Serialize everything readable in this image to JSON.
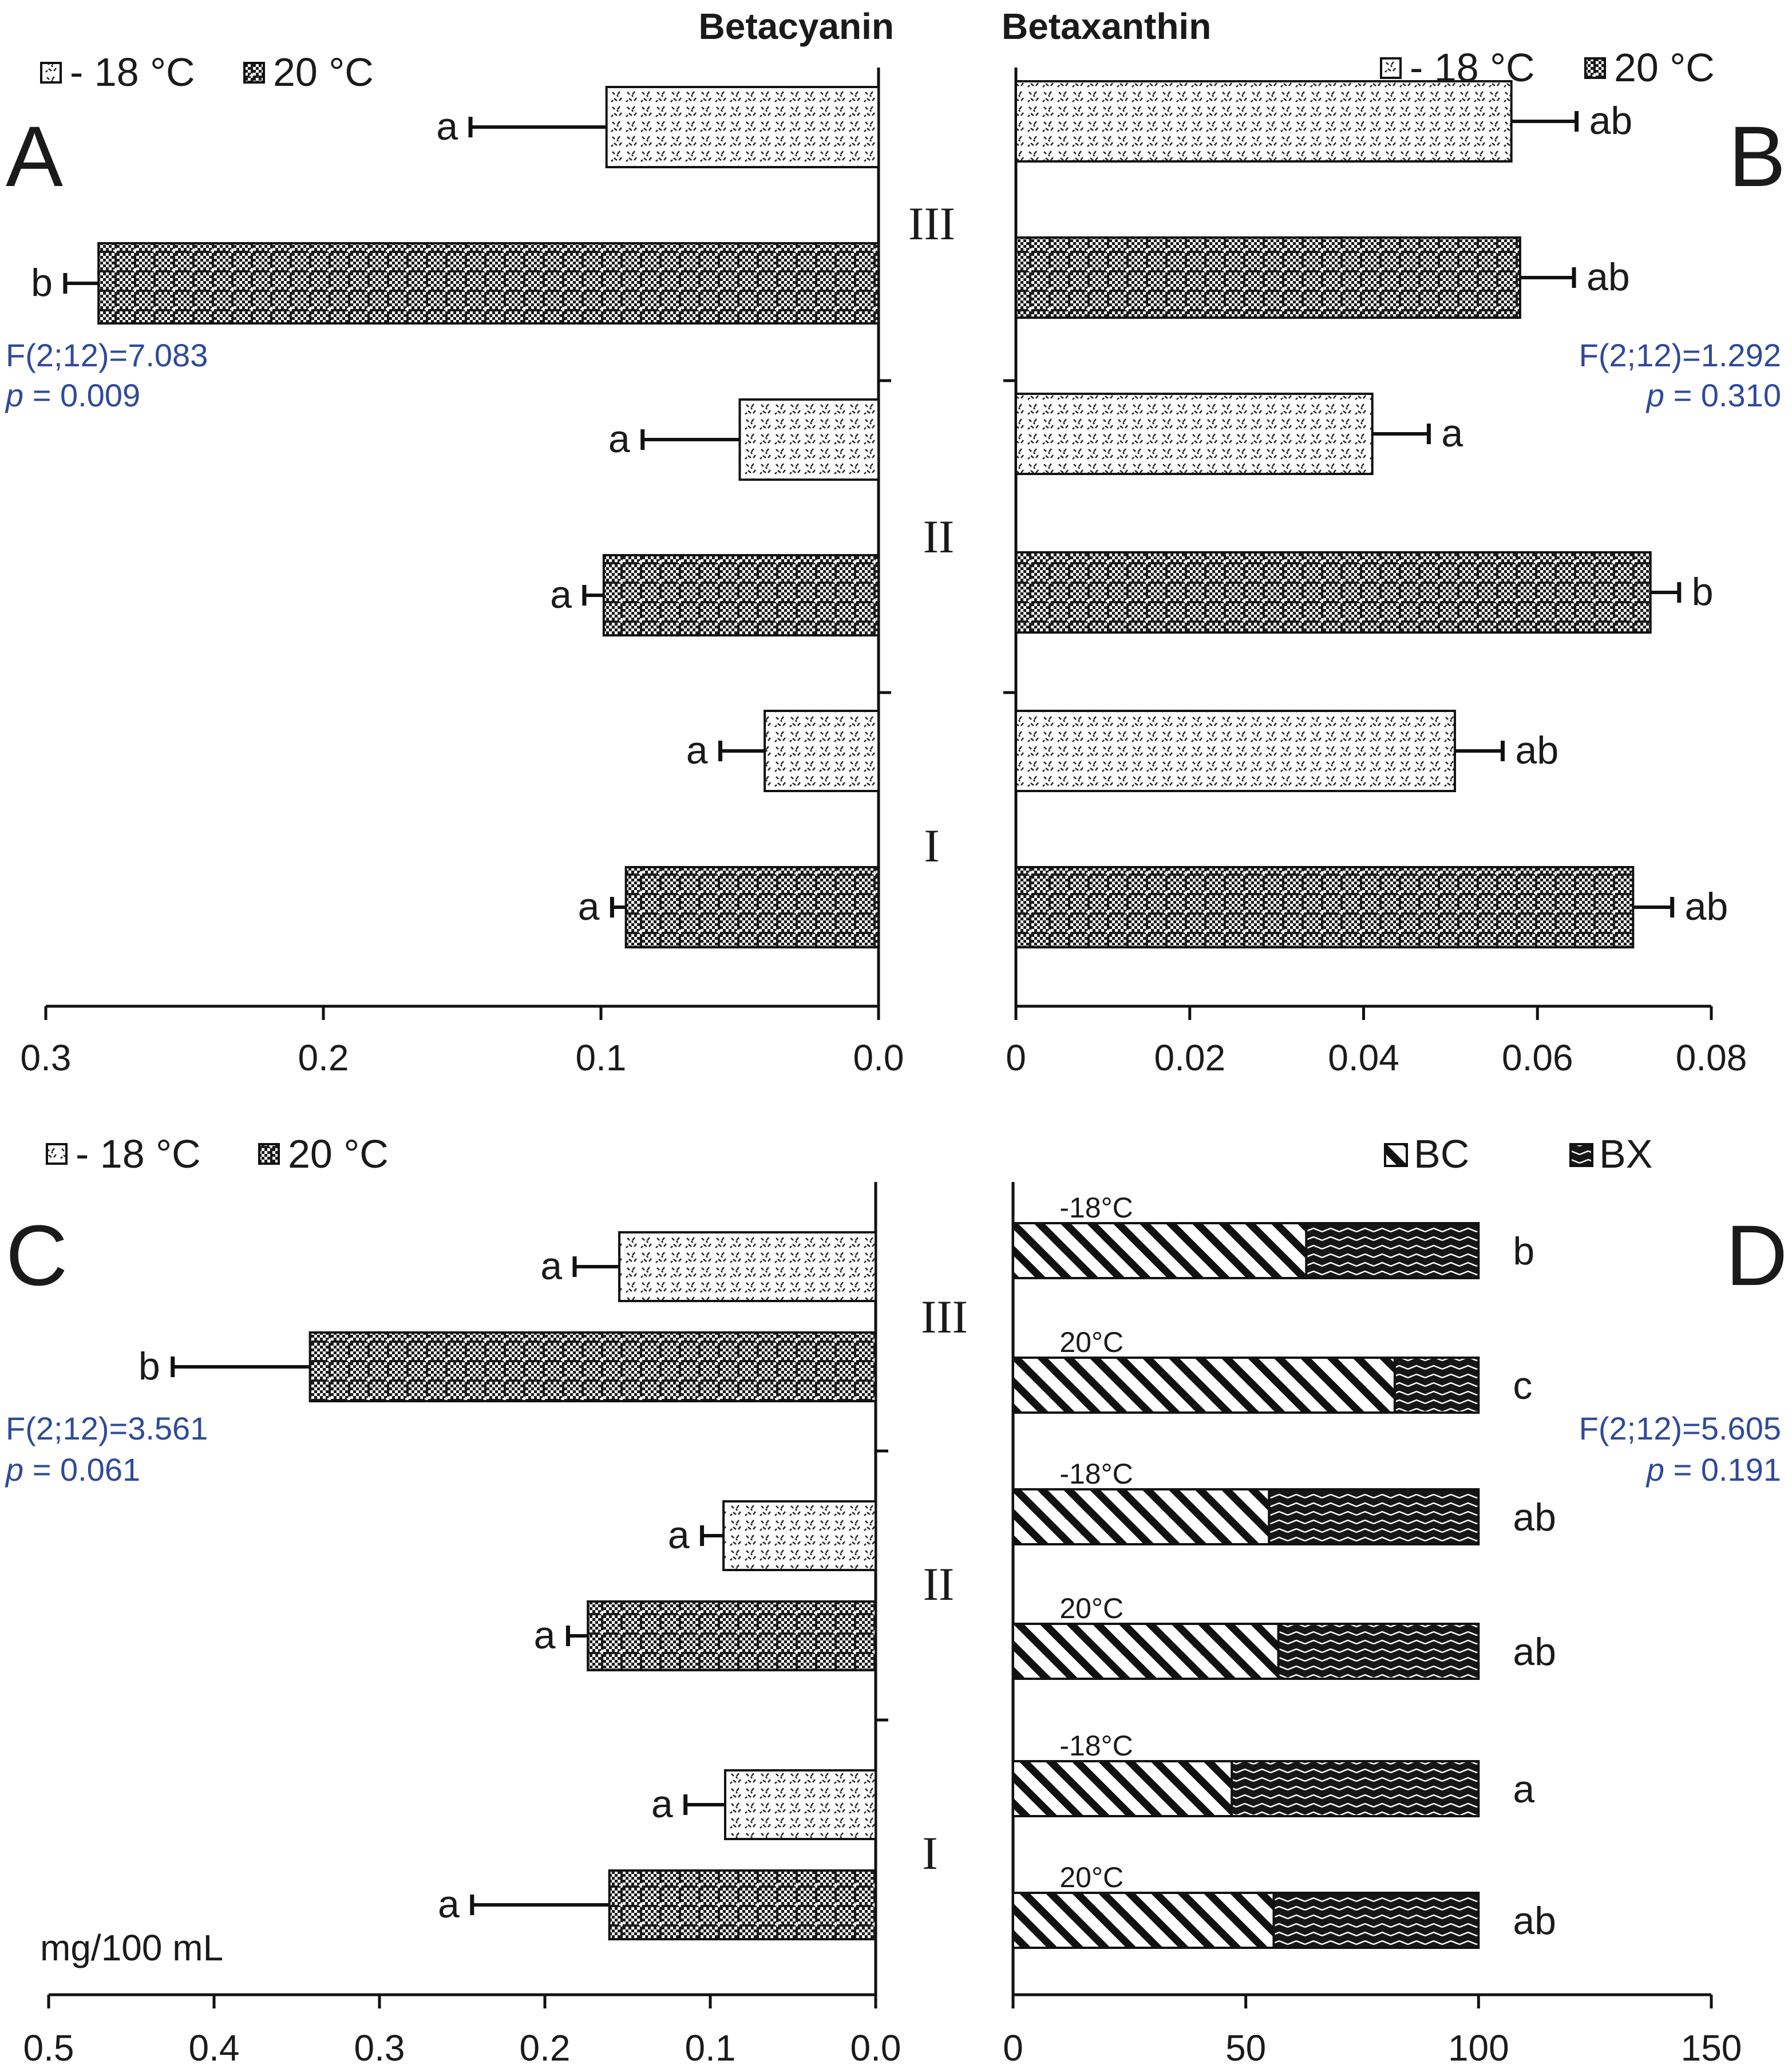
{
  "colors": {
    "stats": "#2e4a9a",
    "ink": "#1a1a1a"
  },
  "chart_data": [
    {
      "panel": "A",
      "type": "bar",
      "orientation": "horizontal",
      "title": "Betacyanin",
      "legend": [
        "- 18 °C",
        "20 °C"
      ],
      "groups": [
        "III",
        "II",
        "I"
      ],
      "xlim": [
        0.3,
        0.0
      ],
      "ticks": [
        "0.3",
        "0.2",
        "0.1",
        "0.0"
      ],
      "tick_values": [
        0.3,
        0.2,
        0.1,
        0.0
      ],
      "series": [
        {
          "name": "- 18 °C",
          "values": [
            0.098,
            0.05,
            0.041
          ],
          "errors": [
            0.049,
            0.035,
            0.016
          ],
          "letters": [
            "a",
            "a",
            "a"
          ]
        },
        {
          "name": "20 °C",
          "values": [
            0.281,
            0.099,
            0.091
          ],
          "errors": [
            0.012,
            0.007,
            0.005
          ],
          "letters": [
            "b",
            "a",
            "a"
          ]
        }
      ],
      "stats": {
        "f": "F(2;12)=7.083",
        "p_label": "p",
        "p_value": "= 0.009"
      }
    },
    {
      "panel": "B",
      "type": "bar",
      "orientation": "horizontal",
      "title": "Betaxanthin",
      "legend": [
        "- 18 °C",
        "20 °C"
      ],
      "groups": [
        "III",
        "II",
        "I"
      ],
      "xlim": [
        0,
        0.08
      ],
      "ticks": [
        "0",
        "0.02",
        "0.04",
        "0.06",
        "0.08"
      ],
      "tick_values": [
        0,
        0.02,
        0.04,
        0.06,
        0.08
      ],
      "series": [
        {
          "name": "- 18 °C",
          "values": [
            0.057,
            0.041,
            0.0505
          ],
          "errors": [
            0.0075,
            0.0065,
            0.0055
          ],
          "letters": [
            "ab",
            "a",
            "ab"
          ]
        },
        {
          "name": "20 °C",
          "values": [
            0.058,
            0.073,
            0.071
          ],
          "errors": [
            0.0062,
            0.0033,
            0.0045
          ],
          "letters": [
            "ab",
            "b",
            "ab"
          ]
        }
      ],
      "stats": {
        "f": "F(2;12)=1.292",
        "p_label": "p",
        "p_value": "= 0.310"
      }
    },
    {
      "panel": "C",
      "type": "bar",
      "orientation": "horizontal",
      "title": "",
      "legend": [
        "- 18 °C",
        "20 °C"
      ],
      "groups": [
        "III",
        "II",
        "I"
      ],
      "xlim": [
        0.5,
        0.0
      ],
      "xlabel": "mg/100 mL",
      "ticks": [
        "0.5",
        "0.4",
        "0.3",
        "0.2",
        "0.1",
        "0.0"
      ],
      "tick_values": [
        0.5,
        0.4,
        0.3,
        0.2,
        0.1,
        0.0
      ],
      "series": [
        {
          "name": "- 18 °C",
          "values": [
            0.155,
            0.092,
            0.091
          ],
          "errors": [
            0.027,
            0.013,
            0.024
          ],
          "letters": [
            "a",
            "a",
            "a"
          ]
        },
        {
          "name": "20 °C",
          "values": [
            0.342,
            0.174,
            0.161
          ],
          "errors": [
            0.083,
            0.012,
            0.083
          ],
          "letters": [
            "b",
            "a",
            "a"
          ]
        }
      ],
      "stats": {
        "f": "F(2;12)=3.561",
        "p_label": "p",
        "p_value": "= 0.061"
      }
    },
    {
      "panel": "D",
      "type": "bar",
      "orientation": "horizontal",
      "stacked": true,
      "title": "",
      "legend": [
        "BC",
        "BX"
      ],
      "rows": [
        "-18°C",
        "20°C",
        "-18°C",
        "20°C",
        "-18°C",
        "20°C"
      ],
      "xlim": [
        0,
        150
      ],
      "ticks": [
        "0",
        "50",
        "100",
        "150"
      ],
      "tick_values": [
        0,
        50,
        100,
        150
      ],
      "series": [
        {
          "name": "BC",
          "values": [
            63,
            82,
            55,
            57,
            47,
            56
          ]
        },
        {
          "name": "BX",
          "values": [
            37,
            18,
            45,
            43,
            53,
            44
          ]
        }
      ],
      "letters": [
        "b",
        "c",
        "ab",
        "ab",
        "a",
        "ab"
      ],
      "stats": {
        "f": "F(2;12)=5.605",
        "p_label": "p",
        "p_value": "= 0.191"
      }
    }
  ]
}
